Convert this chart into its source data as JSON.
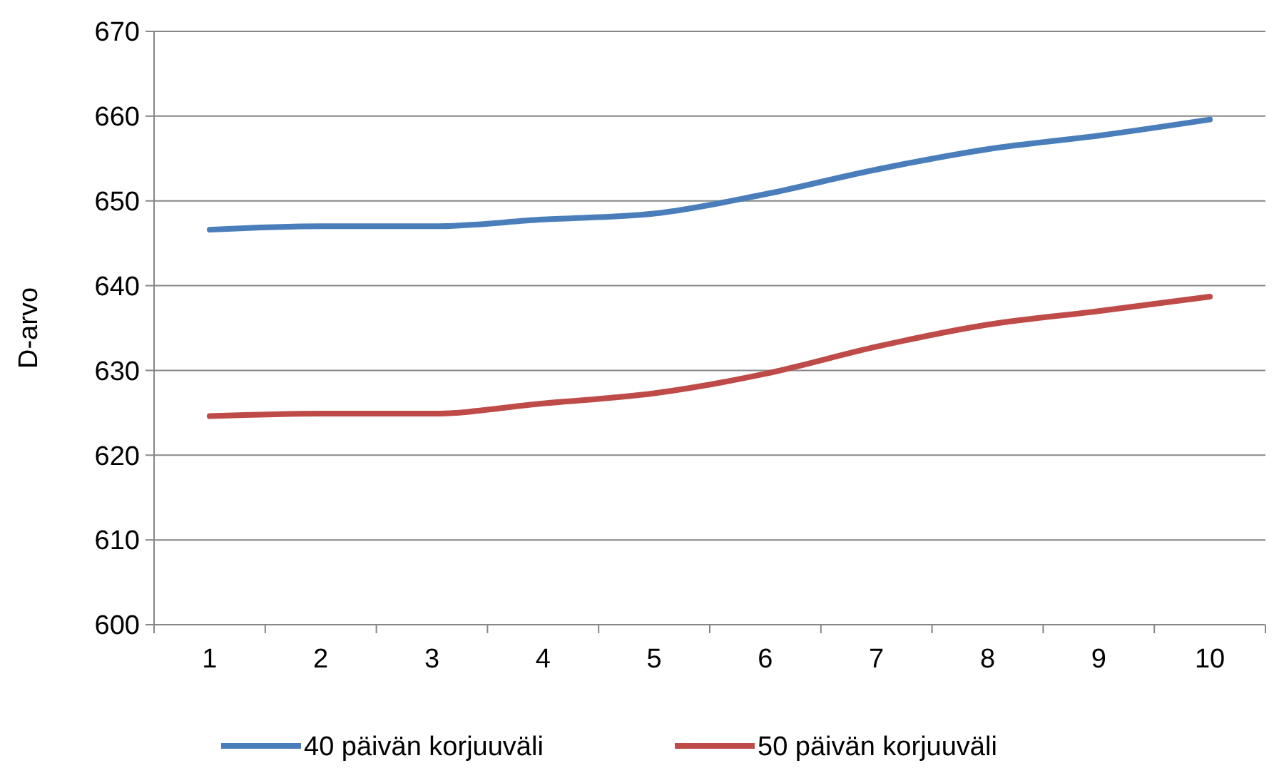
{
  "chart_data": {
    "type": "line",
    "ylabel": "D-arvo",
    "categories": [
      "1",
      "2",
      "3",
      "4",
      "5",
      "6",
      "7",
      "8",
      "9",
      "10"
    ],
    "series": [
      {
        "name": "40 päivän korjuuväli",
        "color": "#4a7ebb",
        "values": [
          646.6,
          647.0,
          647.0,
          647.8,
          648.5,
          650.8,
          653.7,
          656.1,
          657.7,
          659.6
        ]
      },
      {
        "name": "50 päivän korjuuväli",
        "color": "#be4b48",
        "values": [
          624.6,
          624.9,
          624.9,
          626.1,
          627.3,
          629.6,
          632.8,
          635.4,
          637.0,
          638.7
        ]
      }
    ],
    "ylim": [
      600,
      670
    ],
    "yticks": [
      600,
      610,
      620,
      630,
      640,
      650,
      660,
      670
    ],
    "grid": "y",
    "legend": "bottom",
    "marker": "none",
    "line_style": "solid"
  }
}
